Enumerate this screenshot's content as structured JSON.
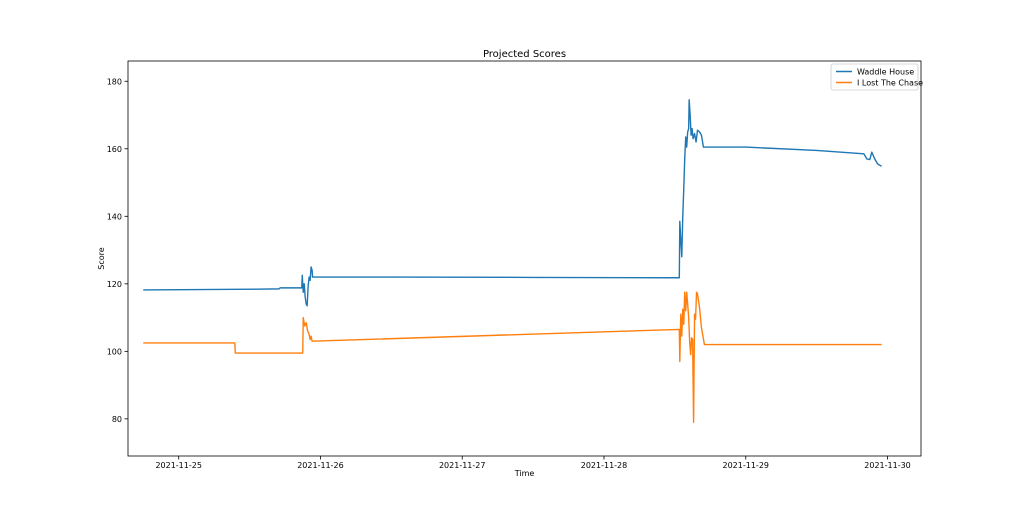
{
  "chart_data": {
    "type": "line",
    "title": "Projected Scores",
    "xlabel": "Time",
    "ylabel": "Score",
    "xlim": [
      "2021-11-24 15:25",
      "2021-11-30 05:40"
    ],
    "ylim": [
      69,
      186
    ],
    "xticks": [
      {
        "value": "2021-11-25 00:00",
        "label": "2021-11-25"
      },
      {
        "value": "2021-11-26 00:00",
        "label": "2021-11-26"
      },
      {
        "value": "2021-11-27 00:00",
        "label": "2021-11-27"
      },
      {
        "value": "2021-11-28 00:00",
        "label": "2021-11-28"
      },
      {
        "value": "2021-11-29 00:00",
        "label": "2021-11-29"
      },
      {
        "value": "2021-11-30 00:00",
        "label": "2021-11-30"
      }
    ],
    "yticks": [
      80,
      100,
      120,
      140,
      160,
      180
    ],
    "grid": false,
    "legend_position": "top-right",
    "series": [
      {
        "name": "Waddle House",
        "color": "#1f77b4",
        "points": [
          [
            "2021-11-24 18:00",
            118.2
          ],
          [
            "2021-11-25 13:00",
            118.4
          ],
          [
            "2021-11-25 17:00",
            118.5
          ],
          [
            "2021-11-25 17:10",
            118.8
          ],
          [
            "2021-11-25 20:50",
            118.8
          ],
          [
            "2021-11-25 20:55",
            122.5
          ],
          [
            "2021-11-25 21:05",
            117.5
          ],
          [
            "2021-11-25 21:15",
            120.0
          ],
          [
            "2021-11-25 21:25",
            116.0
          ],
          [
            "2021-11-25 21:35",
            114.0
          ],
          [
            "2021-11-25 21:45",
            113.5
          ],
          [
            "2021-11-25 21:55",
            119.5
          ],
          [
            "2021-11-25 22:05",
            122.0
          ],
          [
            "2021-11-25 22:15",
            121.0
          ],
          [
            "2021-11-25 22:25",
            125.0
          ],
          [
            "2021-11-25 22:35",
            124.0
          ],
          [
            "2021-11-25 22:40",
            122.0
          ],
          [
            "2021-11-26 12:00",
            122.0
          ],
          [
            "2021-11-27 12:00",
            121.9
          ],
          [
            "2021-11-28 12:00",
            121.8
          ],
          [
            "2021-11-28 12:45",
            121.8
          ],
          [
            "2021-11-28 12:50",
            138.5
          ],
          [
            "2021-11-28 13:00",
            133.0
          ],
          [
            "2021-11-28 13:10",
            128.0
          ],
          [
            "2021-11-28 13:20",
            140.0
          ],
          [
            "2021-11-28 13:30",
            148.0
          ],
          [
            "2021-11-28 13:40",
            157.0
          ],
          [
            "2021-11-28 13:50",
            163.5
          ],
          [
            "2021-11-28 14:00",
            160.5
          ],
          [
            "2021-11-28 14:10",
            165.0
          ],
          [
            "2021-11-28 14:20",
            166.0
          ],
          [
            "2021-11-28 14:25",
            174.5
          ],
          [
            "2021-11-28 14:35",
            170.0
          ],
          [
            "2021-11-28 14:45",
            164.0
          ],
          [
            "2021-11-28 14:55",
            166.0
          ],
          [
            "2021-11-28 15:05",
            163.0
          ],
          [
            "2021-11-28 15:20",
            164.5
          ],
          [
            "2021-11-28 15:35",
            162.0
          ],
          [
            "2021-11-28 15:50",
            165.5
          ],
          [
            "2021-11-28 16:10",
            165.0
          ],
          [
            "2021-11-28 16:30",
            164.0
          ],
          [
            "2021-11-28 16:50",
            160.5
          ],
          [
            "2021-11-29 00:00",
            160.5
          ],
          [
            "2021-11-29 12:00",
            159.5
          ],
          [
            "2021-11-29 20:00",
            158.5
          ],
          [
            "2021-11-29 20:30",
            157.0
          ],
          [
            "2021-11-29 21:00",
            156.8
          ],
          [
            "2021-11-29 21:20",
            159.0
          ],
          [
            "2021-11-29 21:50",
            157.0
          ],
          [
            "2021-11-29 22:20",
            155.5
          ],
          [
            "2021-11-29 23:00",
            154.8
          ]
        ]
      },
      {
        "name": "I Lost The Chase",
        "color": "#ff7f0e",
        "points": [
          [
            "2021-11-24 18:00",
            102.5
          ],
          [
            "2021-11-25 09:30",
            102.5
          ],
          [
            "2021-11-25 09:35",
            99.5
          ],
          [
            "2021-11-25 21:00",
            99.5
          ],
          [
            "2021-11-25 21:05",
            110.0
          ],
          [
            "2021-11-25 21:20",
            107.5
          ],
          [
            "2021-11-25 21:35",
            108.5
          ],
          [
            "2021-11-25 21:50",
            106.0
          ],
          [
            "2021-11-25 22:05",
            105.0
          ],
          [
            "2021-11-25 22:15",
            103.5
          ],
          [
            "2021-11-25 22:25",
            104.5
          ],
          [
            "2021-11-25 22:35",
            103.0
          ],
          [
            "2021-11-28 12:45",
            106.5
          ],
          [
            "2021-11-28 12:50",
            97.0
          ],
          [
            "2021-11-28 13:00",
            111.0
          ],
          [
            "2021-11-28 13:10",
            104.5
          ],
          [
            "2021-11-28 13:20",
            112.5
          ],
          [
            "2021-11-28 13:30",
            108.0
          ],
          [
            "2021-11-28 13:40",
            117.5
          ],
          [
            "2021-11-28 13:50",
            112.0
          ],
          [
            "2021-11-28 14:00",
            117.5
          ],
          [
            "2021-11-28 14:10",
            114.0
          ],
          [
            "2021-11-28 14:20",
            110.0
          ],
          [
            "2021-11-28 14:30",
            103.0
          ],
          [
            "2021-11-28 14:40",
            99.0
          ],
          [
            "2021-11-28 14:50",
            104.0
          ],
          [
            "2021-11-28 15:00",
            103.5
          ],
          [
            "2021-11-28 15:10",
            79.0
          ],
          [
            "2021-11-28 15:20",
            111.0
          ],
          [
            "2021-11-28 15:30",
            109.5
          ],
          [
            "2021-11-28 15:40",
            117.5
          ],
          [
            "2021-11-28 15:50",
            117.0
          ],
          [
            "2021-11-28 16:10",
            113.0
          ],
          [
            "2021-11-28 16:30",
            107.0
          ],
          [
            "2021-11-28 17:00",
            102.0
          ],
          [
            "2021-11-29 12:00",
            102.0
          ],
          [
            "2021-11-29 23:00",
            102.0
          ]
        ]
      }
    ]
  }
}
